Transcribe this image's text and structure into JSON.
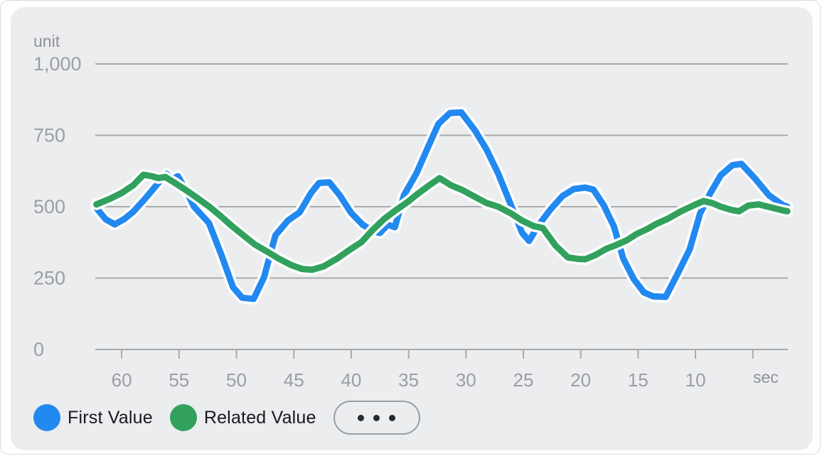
{
  "chart_data": {
    "type": "line",
    "title": "",
    "y_axis": {
      "label": "unit",
      "min": 0,
      "max": 1000,
      "ticks": [
        {
          "value": 1000,
          "label": "1,000"
        },
        {
          "value": 750,
          "label": "750"
        },
        {
          "value": 500,
          "label": "500"
        },
        {
          "value": 250,
          "label": "250"
        },
        {
          "value": 0,
          "label": "0"
        }
      ]
    },
    "x_axis": {
      "unit_label": "sec",
      "description": "seconds ago, decreasing left to right",
      "t_left": 62.3,
      "t_right": 1.95,
      "ticks": [
        {
          "value": 60,
          "label": "60"
        },
        {
          "value": 55,
          "label": "55"
        },
        {
          "value": 50,
          "label": "50"
        },
        {
          "value": 45,
          "label": "45"
        },
        {
          "value": 40,
          "label": "40"
        },
        {
          "value": 35,
          "label": "35"
        },
        {
          "value": 30,
          "label": "30"
        },
        {
          "value": 25,
          "label": "25"
        },
        {
          "value": 20,
          "label": "20"
        },
        {
          "value": 15,
          "label": "15"
        },
        {
          "value": 10,
          "label": "10"
        },
        {
          "value": 5,
          "label": ""
        }
      ]
    },
    "grid": "horizontal",
    "legend_position": "bottom-left",
    "series": [
      {
        "name": "First Value",
        "color": "#2289f0",
        "points": [
          [
            62.2,
            495
          ],
          [
            61.4,
            456
          ],
          [
            60.6,
            438
          ],
          [
            59.8,
            456
          ],
          [
            59,
            482
          ],
          [
            58,
            526
          ],
          [
            57,
            574
          ],
          [
            56.1,
            615
          ],
          [
            55.6,
            597
          ],
          [
            55.1,
            607
          ],
          [
            54.4,
            558
          ],
          [
            53.7,
            500
          ],
          [
            52.4,
            443
          ],
          [
            51.3,
            330
          ],
          [
            50.3,
            218
          ],
          [
            49.5,
            181
          ],
          [
            48.5,
            177
          ],
          [
            47.6,
            252
          ],
          [
            46.6,
            400
          ],
          [
            45.5,
            452
          ],
          [
            44.5,
            480
          ],
          [
            43.5,
            548
          ],
          [
            42.8,
            583
          ],
          [
            41.9,
            585
          ],
          [
            41,
            540
          ],
          [
            40,
            478
          ],
          [
            39,
            437
          ],
          [
            38.1,
            414
          ],
          [
            37.5,
            408
          ],
          [
            36.8,
            437
          ],
          [
            36.2,
            428
          ],
          [
            35.4,
            540
          ],
          [
            34.3,
            618
          ],
          [
            33.4,
            700
          ],
          [
            32.4,
            790
          ],
          [
            31.4,
            828
          ],
          [
            30.4,
            830
          ],
          [
            29.2,
            766
          ],
          [
            28.2,
            700
          ],
          [
            27.2,
            617
          ],
          [
            26.1,
            508
          ],
          [
            25.1,
            408
          ],
          [
            24.5,
            380
          ],
          [
            23.7,
            434
          ],
          [
            22.6,
            492
          ],
          [
            21.6,
            537
          ],
          [
            20.6,
            562
          ],
          [
            19.6,
            567
          ],
          [
            18.9,
            560
          ],
          [
            18,
            505
          ],
          [
            17.1,
            430
          ],
          [
            16.3,
            319
          ],
          [
            15.4,
            248
          ],
          [
            14.5,
            200
          ],
          [
            13.7,
            186
          ],
          [
            12.6,
            184
          ],
          [
            11.5,
            270
          ],
          [
            10.5,
            351
          ],
          [
            9.6,
            476
          ],
          [
            8.7,
            548
          ],
          [
            7.8,
            610
          ],
          [
            6.8,
            645
          ],
          [
            6,
            650
          ],
          [
            4.8,
            598
          ],
          [
            3.6,
            540
          ],
          [
            2.4,
            506
          ],
          [
            2,
            500
          ]
        ]
      },
      {
        "name": "Related Value",
        "color": "#31a15d",
        "points": [
          [
            62.2,
            508
          ],
          [
            61,
            528
          ],
          [
            60,
            548
          ],
          [
            59,
            575
          ],
          [
            58.1,
            612
          ],
          [
            57.4,
            607
          ],
          [
            56.8,
            600
          ],
          [
            56.2,
            604
          ],
          [
            55.4,
            584
          ],
          [
            54.4,
            558
          ],
          [
            53.5,
            533
          ],
          [
            52.3,
            498
          ],
          [
            51.4,
            468
          ],
          [
            50.4,
            432
          ],
          [
            49.4,
            400
          ],
          [
            48.4,
            368
          ],
          [
            47.3,
            342
          ],
          [
            46.3,
            318
          ],
          [
            45.2,
            295
          ],
          [
            44.3,
            282
          ],
          [
            43.4,
            279
          ],
          [
            42.4,
            291
          ],
          [
            41.2,
            319
          ],
          [
            40.1,
            350
          ],
          [
            39.1,
            376
          ],
          [
            38.1,
            420
          ],
          [
            37.1,
            458
          ],
          [
            36.1,
            488
          ],
          [
            35.1,
            516
          ],
          [
            34.2,
            545
          ],
          [
            33.3,
            572
          ],
          [
            32.3,
            600
          ],
          [
            31.3,
            575
          ],
          [
            30.3,
            558
          ],
          [
            29.2,
            534
          ],
          [
            28.2,
            513
          ],
          [
            27.2,
            500
          ],
          [
            26.1,
            477
          ],
          [
            25.1,
            451
          ],
          [
            24.1,
            432
          ],
          [
            23.3,
            425
          ],
          [
            22.2,
            364
          ],
          [
            21.1,
            322
          ],
          [
            20.2,
            317
          ],
          [
            19.6,
            316
          ],
          [
            18.7,
            331
          ],
          [
            17.8,
            352
          ],
          [
            16.9,
            366
          ],
          [
            16,
            382
          ],
          [
            15.1,
            405
          ],
          [
            14.2,
            422
          ],
          [
            13.4,
            440
          ],
          [
            12.4,
            458
          ],
          [
            11.3,
            483
          ],
          [
            10.2,
            504
          ],
          [
            9.3,
            520
          ],
          [
            8.5,
            512
          ],
          [
            7.8,
            500
          ],
          [
            6.9,
            489
          ],
          [
            6.2,
            484
          ],
          [
            5.4,
            504
          ],
          [
            4.5,
            508
          ],
          [
            3.5,
            498
          ],
          [
            2.5,
            488
          ],
          [
            2,
            484
          ]
        ]
      }
    ]
  },
  "legend": {
    "items": [
      {
        "label": "First Value",
        "color": "#2289f0"
      },
      {
        "label": "Related Value",
        "color": "#31a15d"
      }
    ],
    "more_button": {
      "dots": 3
    }
  },
  "colors": {
    "card_background": "#ecedef",
    "grid_line": "#a8aaac",
    "tick_label": "#9b9ea2",
    "axis_unit_label": "#8e9196",
    "legend_text": "#17191c",
    "line_halo": "#ffffff"
  }
}
